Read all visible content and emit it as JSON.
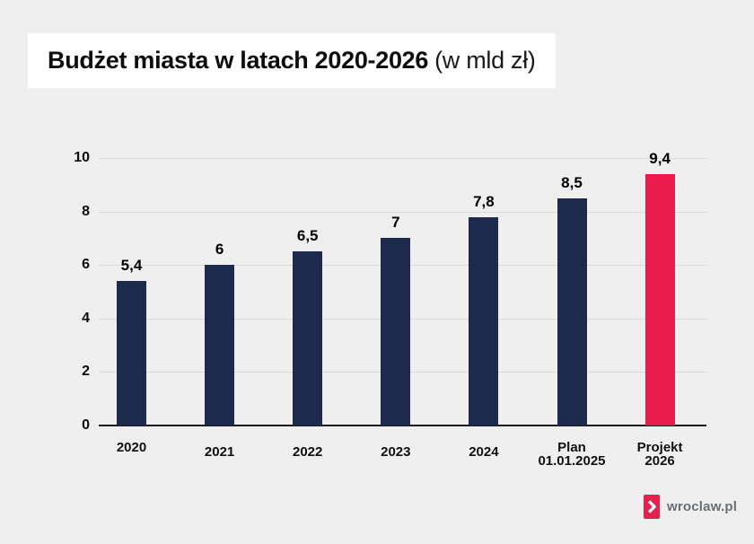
{
  "header": {
    "title_bold": "Budżet miasta w latach 2020-2026",
    "title_suffix": "(w mld zł)"
  },
  "chart_data": {
    "type": "bar",
    "title": "Budżet miasta w latach 2020-2026 (w mld zł)",
    "categories": [
      [
        "2020"
      ],
      [
        "2021"
      ],
      [
        "2022"
      ],
      [
        "2023"
      ],
      [
        "2024"
      ],
      [
        "Plan",
        "01.01.2025"
      ],
      [
        "Projekt",
        "2026"
      ]
    ],
    "values": [
      5.4,
      6,
      6.5,
      7,
      7.8,
      8.5,
      9.4
    ],
    "value_labels": [
      "5,4",
      "6",
      "6,5",
      "7",
      "7,8",
      "8,5",
      "9,4"
    ],
    "ylim": [
      0,
      10
    ],
    "yticks": [
      0,
      2,
      4,
      6,
      8,
      10
    ],
    "grid": true,
    "legend_position": "none",
    "bar_color": "#1e2a4b",
    "highlight_index": 6,
    "highlight_color": "#e91c4d",
    "background_color": "#efefef",
    "gridline_color": "#dadada",
    "axis_color": "#17191c"
  },
  "footer": {
    "brand": "wroclaw.pl",
    "brand_color": "#e5214e"
  }
}
